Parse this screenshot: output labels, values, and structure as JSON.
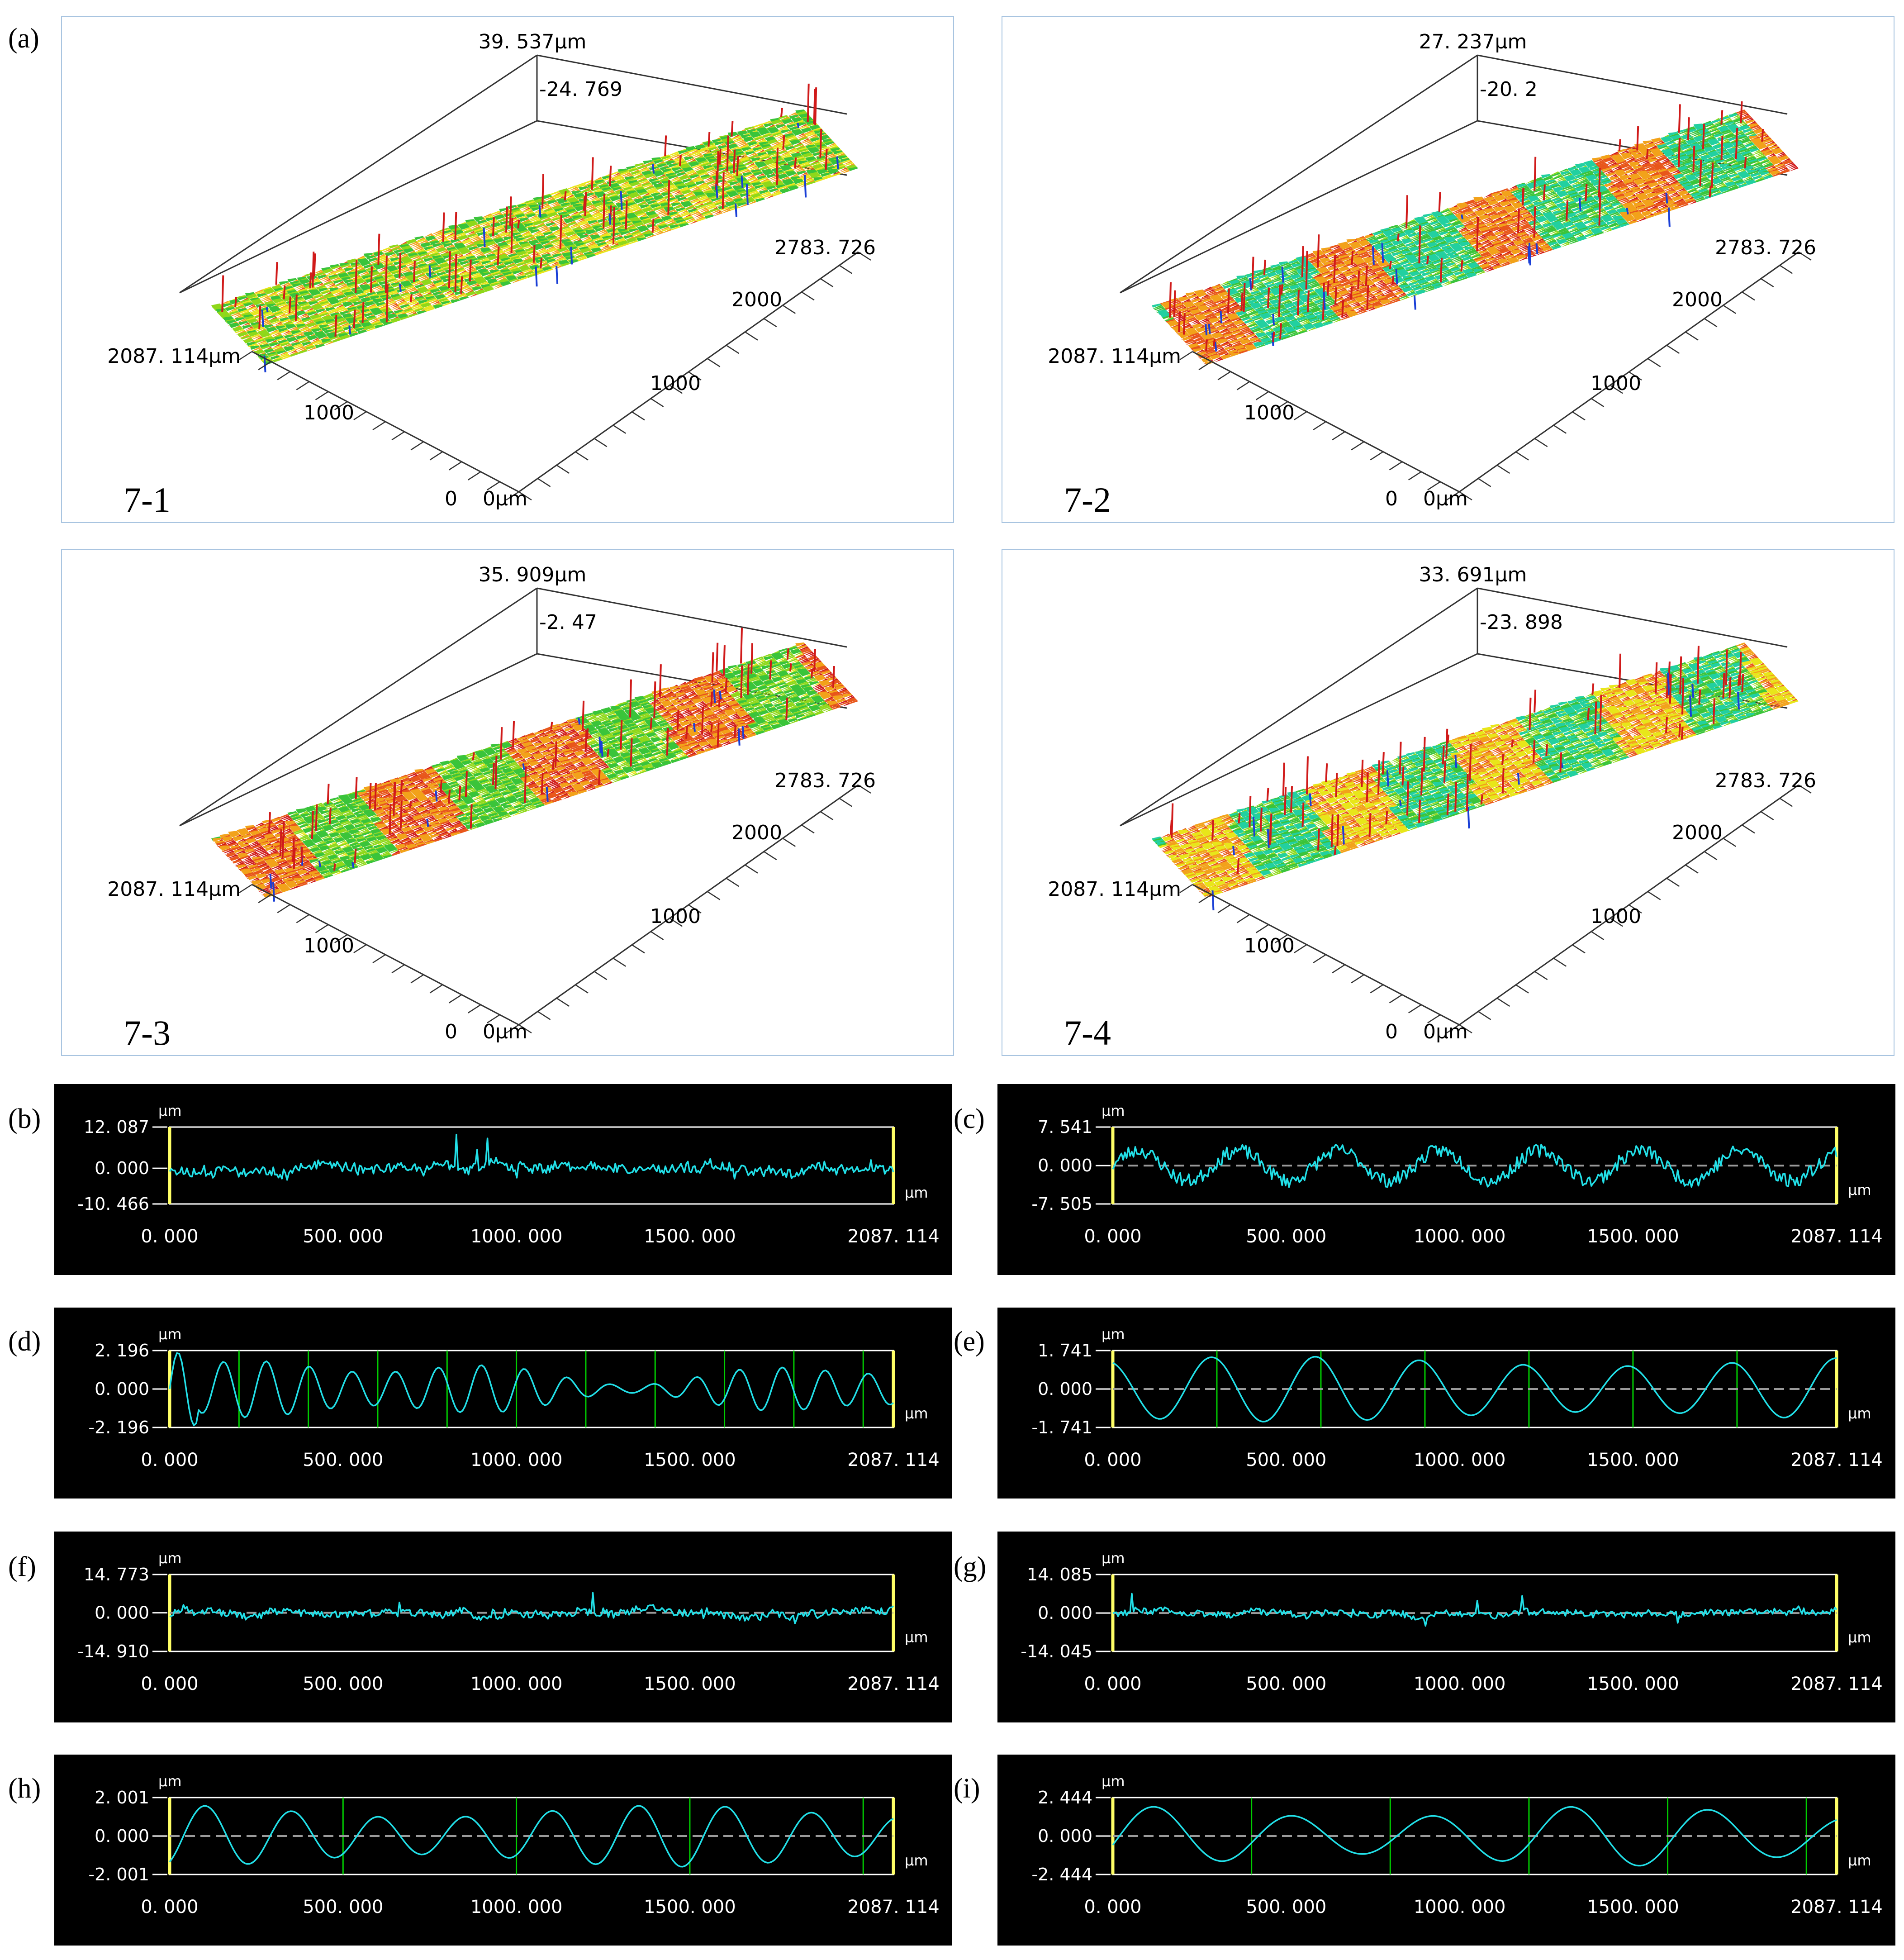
{
  "surfaces": [
    {
      "letter": "(a)",
      "label": "7-1",
      "z_max": "39. 537µm",
      "z_min": "-24. 769",
      "x_max": "2783. 726",
      "x_mid": "2000",
      "x_low": "1000",
      "y_max": "2087. 114µm",
      "y_mid": "1000",
      "origin_y": "0",
      "origin_x": "0µm",
      "pattern": "noise"
    },
    {
      "letter": "",
      "label": "7-2",
      "z_max": "27. 237µm",
      "z_min": "-20. 2",
      "x_max": "2783. 726",
      "x_mid": "2000",
      "x_low": "1000",
      "y_max": "2087. 114µm",
      "y_mid": "1000",
      "origin_y": "0",
      "origin_x": "0µm",
      "pattern": "stripes-blue"
    },
    {
      "letter": "",
      "label": "7-3",
      "z_max": "35. 909µm",
      "z_min": "-2. 47",
      "x_max": "2783. 726",
      "x_mid": "2000",
      "x_low": "1000",
      "y_max": "2087. 114µm",
      "y_mid": "1000",
      "origin_y": "0",
      "origin_x": "0µm",
      "pattern": "stripes-red"
    },
    {
      "letter": "",
      "label": "7-4",
      "z_max": "33. 691µm",
      "z_min": "-23. 898",
      "x_max": "2783. 726",
      "x_mid": "2000",
      "x_low": "1000",
      "y_max": "2087. 114µm",
      "y_mid": "1000",
      "origin_y": "0",
      "origin_x": "0µm",
      "pattern": "stripes-mixed"
    }
  ],
  "colors": {
    "profile_line": "#22e0e8",
    "frame": "#ffffff",
    "end_marker": "#ffff66",
    "grid_line": "#00cc00",
    "zero_line": "#9a9a9a",
    "surface_border": "#a8c4e0"
  },
  "chart_data": [
    {
      "letter": "(b)",
      "type": "line",
      "unit": "µm",
      "ymax_label": "12. 087",
      "yzero_label": "0. 000",
      "ymin_label": "-10. 466",
      "ylim": [
        -10.466,
        12.087
      ],
      "xlim": [
        0,
        2087.114
      ],
      "xticks": [
        "0. 000",
        "500. 000",
        "1000. 000",
        "1500. 000",
        "2087. 114"
      ],
      "xtick_values": [
        0,
        500,
        1000,
        1500,
        2087.114
      ],
      "style": "noisy",
      "amplitude": 0.45,
      "seed": 11,
      "green_lines": [],
      "dashed_zero": false
    },
    {
      "letter": "(c)",
      "type": "line",
      "unit": "µm",
      "ymax_label": "7. 541",
      "yzero_label": "0. 000",
      "ymin_label": "-7. 505",
      "ylim": [
        -7.505,
        7.541
      ],
      "xlim": [
        0,
        2087.114
      ],
      "xticks": [
        "0. 000",
        "500. 000",
        "1000. 000",
        "1500. 000",
        "2087. 114"
      ],
      "xtick_values": [
        0,
        500,
        1000,
        1500,
        2087.114
      ],
      "style": "noisy-wave",
      "amplitude": 0.55,
      "seed": 23,
      "period": 290,
      "green_lines": [],
      "dashed_zero": true
    },
    {
      "letter": "(d)",
      "type": "line",
      "unit": "µm",
      "ymax_label": "2. 196",
      "yzero_label": "0. 000",
      "ymin_label": "-2. 196",
      "ylim": [
        -2.196,
        2.196
      ],
      "xlim": [
        0,
        2087.114
      ],
      "xticks": [
        "0. 000",
        "500. 000",
        "1000. 000",
        "1500. 000",
        "2087. 114"
      ],
      "xtick_values": [
        0,
        500,
        1000,
        1500,
        2087.114
      ],
      "style": "smooth",
      "amplitude": 0.55,
      "seed": 5,
      "period": 200,
      "green_lines": [
        200,
        400,
        600,
        800,
        1000,
        1200,
        1400,
        1600,
        1800,
        2000
      ],
      "dashed_zero": false
    },
    {
      "letter": "(e)",
      "type": "line",
      "unit": "µm",
      "ymax_label": "1. 741",
      "yzero_label": "0. 000",
      "ymin_label": "-1. 741",
      "ylim": [
        -1.741,
        1.741
      ],
      "xlim": [
        0,
        2087.114
      ],
      "xticks": [
        "0. 000",
        "500. 000",
        "1000. 000",
        "1500. 000",
        "2087. 114"
      ],
      "xtick_values": [
        0,
        500,
        1000,
        1500,
        2087.114
      ],
      "style": "sine",
      "amplitude": 0.85,
      "seed": 7,
      "period": 300,
      "phase": 1.9,
      "green_lines": [
        300,
        600,
        900,
        1200,
        1500,
        1800
      ],
      "dashed_zero": true
    },
    {
      "letter": "(f)",
      "type": "line",
      "unit": "µm",
      "ymax_label": "14. 773",
      "yzero_label": "0. 000",
      "ymin_label": "-14. 910",
      "ylim": [
        -14.91,
        14.773
      ],
      "xlim": [
        0,
        2087.114
      ],
      "xticks": [
        "0. 000",
        "500. 000",
        "1000. 000",
        "1500. 000",
        "2087. 114"
      ],
      "xtick_values": [
        0,
        500,
        1000,
        1500,
        2087.114
      ],
      "style": "noisy",
      "amplitude": 0.35,
      "seed": 31,
      "green_lines": [],
      "dashed_zero": true
    },
    {
      "letter": "(g)",
      "type": "line",
      "unit": "µm",
      "ymax_label": "14. 085",
      "yzero_label": "0. 000",
      "ymin_label": "-14. 045",
      "ylim": [
        -14.045,
        14.085
      ],
      "xlim": [
        0,
        2087.114
      ],
      "xticks": [
        "0. 000",
        "500. 000",
        "1000. 000",
        "1500. 000",
        "2087. 114"
      ],
      "xtick_values": [
        0,
        500,
        1000,
        1500,
        2087.114
      ],
      "style": "noisy",
      "amplitude": 0.28,
      "seed": 47,
      "green_lines": [],
      "dashed_zero": true
    },
    {
      "letter": "(h)",
      "type": "line",
      "unit": "µm",
      "ymax_label": "2. 001",
      "yzero_label": "0. 000",
      "ymin_label": "-2. 001",
      "ylim": [
        -2.001,
        2.001
      ],
      "xlim": [
        0,
        2087.114
      ],
      "xticks": [
        "0. 000",
        "500. 000",
        "1000. 000",
        "1500. 000",
        "2087. 114"
      ],
      "xtick_values": [
        0,
        500,
        1000,
        1500,
        2087.114
      ],
      "style": "sine2",
      "amplitude": 0.8,
      "seed": 13,
      "period": 250,
      "phase": -1.0,
      "green_lines": [
        500,
        1000,
        1500,
        2000
      ],
      "dashed_zero": true
    },
    {
      "letter": "(i)",
      "type": "line",
      "unit": "µm",
      "ymax_label": "2. 444",
      "yzero_label": "0. 000",
      "ymin_label": "-2. 444",
      "ylim": [
        -2.444,
        2.444
      ],
      "xlim": [
        0,
        2087.114
      ],
      "xticks": [
        "0. 000",
        "500. 000",
        "1000. 000",
        "1500. 000",
        "2087. 114"
      ],
      "xtick_values": [
        0,
        500,
        1000,
        1500,
        2087.114
      ],
      "style": "sine2",
      "amplitude": 0.78,
      "seed": 19,
      "period": 400,
      "phase": -0.3,
      "green_lines": [
        400,
        800,
        1200,
        1600,
        2000
      ],
      "dashed_zero": true
    }
  ]
}
